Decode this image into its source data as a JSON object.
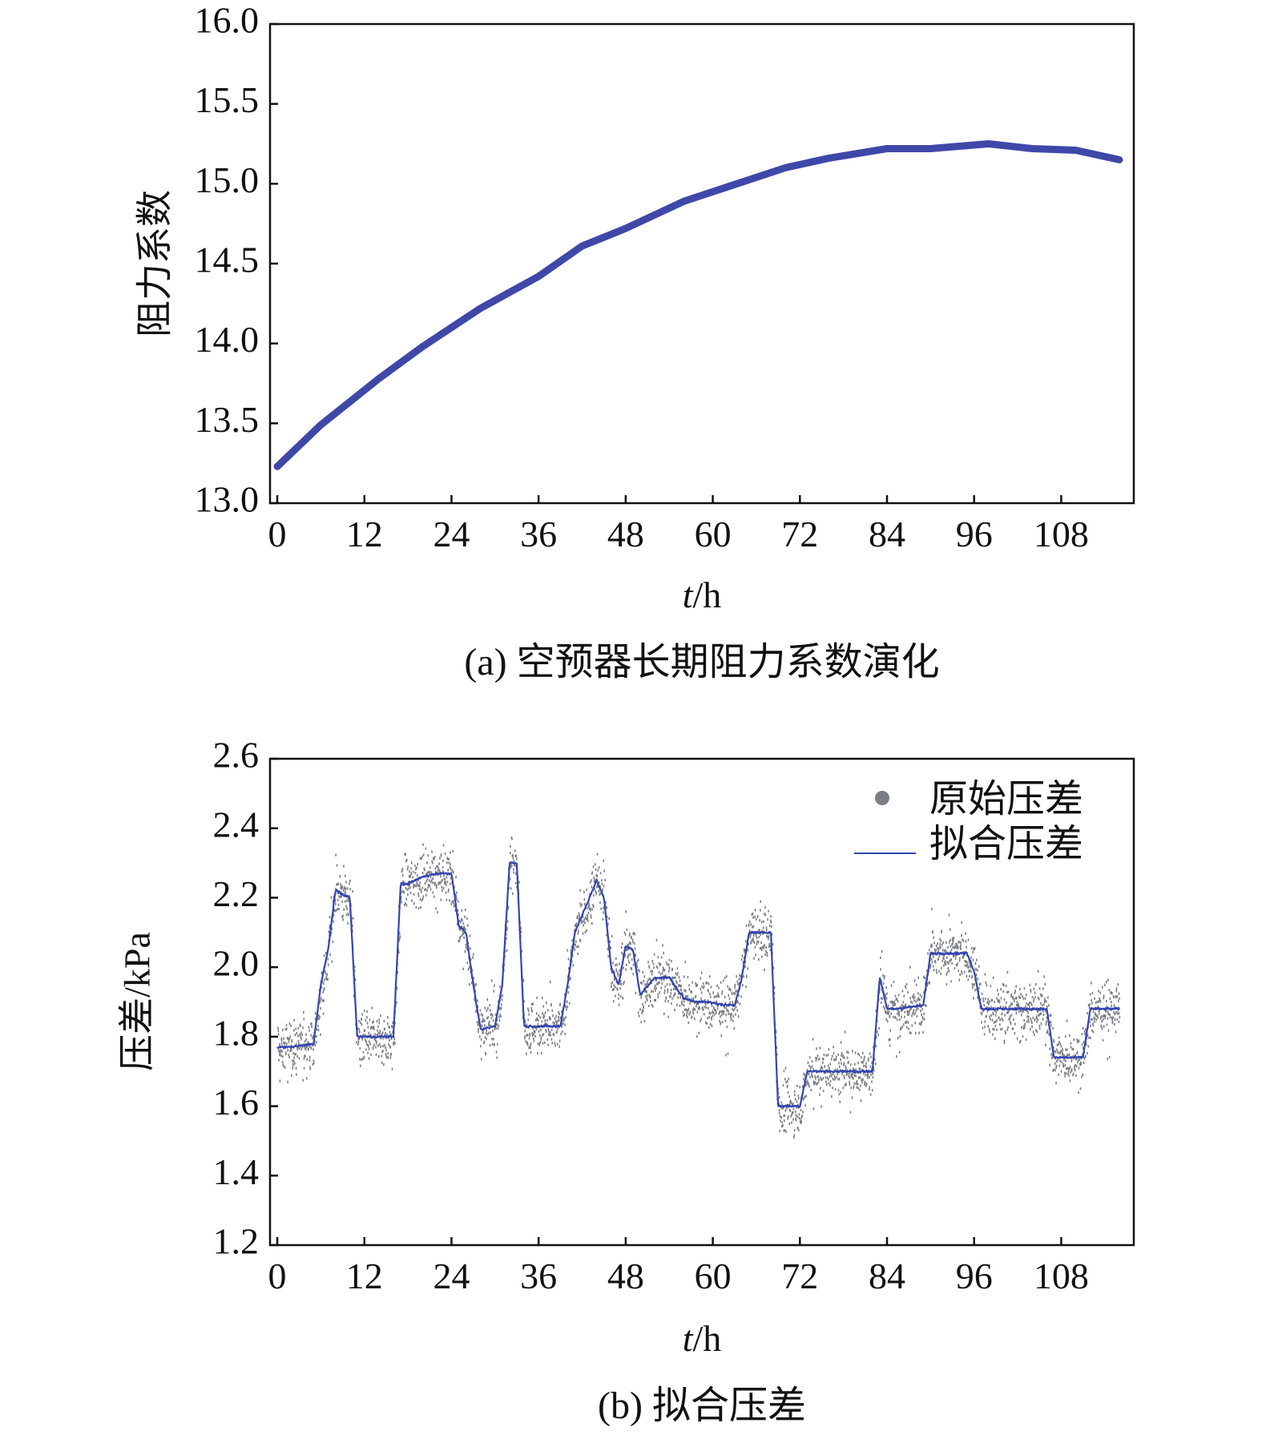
{
  "chart_data": [
    {
      "type": "line",
      "caption": "(a) 空预器长期阻力系数演化",
      "xlabel_italic": "t",
      "xlabel_unit": "/h",
      "ylabel": "阻力系数",
      "xlim": [
        -1,
        118
      ],
      "ylim": [
        13.0,
        16.0
      ],
      "xticks": [
        0,
        12,
        24,
        36,
        48,
        60,
        72,
        84,
        96,
        108
      ],
      "yticks": [
        "13.0",
        "13.5",
        "14.0",
        "14.5",
        "15.0",
        "15.5",
        "16.0"
      ],
      "grid": false,
      "colors": {
        "line": "#3f48a8"
      },
      "series": [
        {
          "x": [
            0,
            6,
            14,
            20,
            28,
            36,
            42,
            48,
            56,
            62,
            70,
            76,
            84,
            90,
            98,
            104,
            110,
            116
          ],
          "y": [
            13.23,
            13.49,
            13.78,
            13.98,
            14.22,
            14.42,
            14.61,
            14.72,
            14.89,
            14.98,
            15.1,
            15.16,
            15.22,
            15.22,
            15.25,
            15.22,
            15.21,
            15.15
          ]
        }
      ]
    },
    {
      "type": "scatter",
      "caption": "(b) 拟合压差",
      "xlabel_italic": "t",
      "xlabel_unit": "/h",
      "ylabel": "压差/kPa",
      "xlim": [
        -1,
        118
      ],
      "ylim": [
        1.2,
        2.6
      ],
      "xticks": [
        0,
        12,
        24,
        36,
        48,
        60,
        72,
        84,
        96,
        108
      ],
      "yticks": [
        "1.2",
        "1.4",
        "1.6",
        "1.8",
        "2.0",
        "2.2",
        "2.4",
        "2.6"
      ],
      "grid": false,
      "legend_position": "top-right",
      "colors": {
        "raw": "#7b7e83",
        "fit": "#3545b0"
      },
      "series": [
        {
          "name": "原始压差"
        },
        {
          "name": "拟合压差",
          "x": [
            0,
            2,
            5,
            6,
            7,
            8,
            10,
            11,
            16,
            17,
            18,
            20,
            22,
            24,
            25,
            26,
            27,
            28,
            30,
            31,
            32,
            33,
            34,
            39,
            40,
            41,
            44,
            45,
            46,
            47,
            48,
            49,
            50,
            52,
            54,
            56,
            58,
            59,
            62,
            63,
            64,
            65,
            68,
            69,
            72,
            73,
            82,
            83,
            84,
            85,
            89,
            90,
            95,
            96,
            97,
            99,
            106,
            107,
            111,
            112,
            116
          ],
          "y": [
            1.77,
            1.77,
            1.78,
            1.95,
            2.05,
            2.22,
            2.2,
            1.8,
            1.8,
            2.24,
            2.24,
            2.26,
            2.27,
            2.27,
            2.12,
            2.1,
            1.95,
            1.82,
            1.83,
            1.95,
            2.3,
            2.3,
            1.83,
            1.83,
            1.95,
            2.1,
            2.25,
            2.2,
            2.0,
            1.95,
            2.06,
            2.05,
            1.92,
            1.97,
            1.97,
            1.91,
            1.9,
            1.9,
            1.89,
            1.89,
            1.97,
            2.1,
            2.1,
            1.6,
            1.6,
            1.7,
            1.7,
            1.97,
            1.88,
            1.88,
            1.89,
            2.04,
            2.04,
            1.99,
            1.88,
            1.88,
            1.88,
            1.74,
            1.74,
            1.88,
            1.88
          ]
        }
      ]
    }
  ]
}
